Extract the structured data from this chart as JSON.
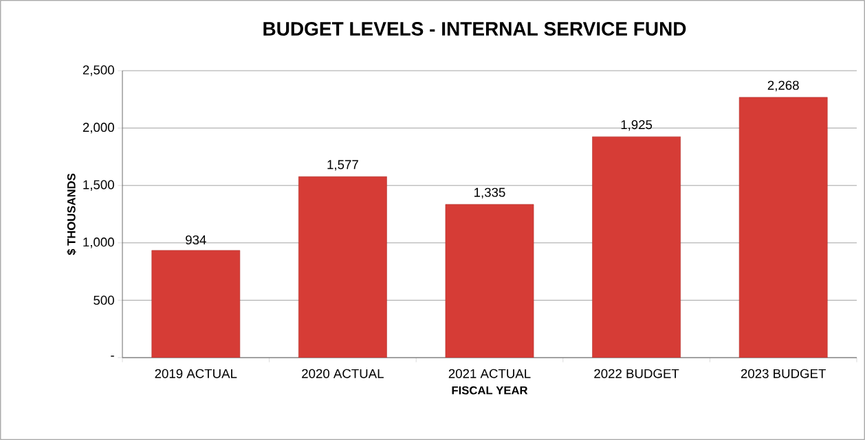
{
  "chart_data": {
    "type": "bar",
    "title": "BUDGET LEVELS - INTERNAL SERVICE FUND",
    "xlabel": "FISCAL YEAR",
    "ylabel": "$ THOUSANDS",
    "categories": [
      "2019 ACTUAL",
      "2020 ACTUAL",
      "2021 ACTUAL",
      "2022 BUDGET",
      "2023 BUDGET"
    ],
    "values": [
      934,
      1577,
      1335,
      1925,
      2268
    ],
    "value_labels": [
      "934",
      "1,577",
      "1,335",
      "1,925",
      "2,268"
    ],
    "color": "#d63c36",
    "ylim": [
      0,
      2500
    ],
    "yticks": [
      {
        "value": 0,
        "label": "-"
      },
      {
        "value": 500,
        "label": "500"
      },
      {
        "value": 1000,
        "label": "1,000"
      },
      {
        "value": 1500,
        "label": "1,500"
      },
      {
        "value": 2000,
        "label": "2,000"
      },
      {
        "value": 2500,
        "label": "2,500"
      }
    ],
    "grid": "y"
  }
}
